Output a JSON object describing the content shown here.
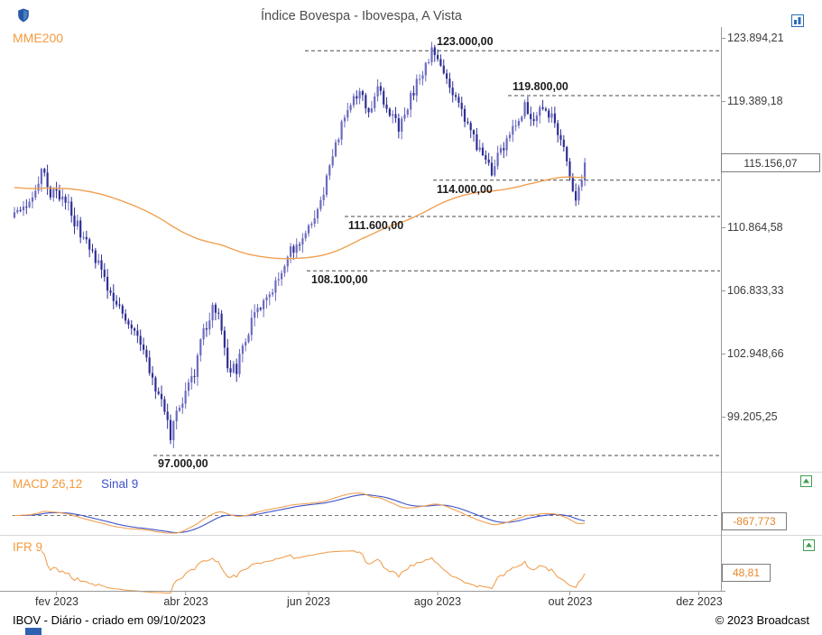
{
  "colors": {
    "candle_up": "#6B6BC0",
    "candle_down": "#2F2F95",
    "mme200": "#F0A052",
    "macd": "#F0A052",
    "sinal": "#3E53C9",
    "ifr": "#F0A052",
    "annotation_line": "#4A4A4A",
    "value_text": "#E7872B",
    "icon_blue": "#2B6CB8",
    "icon_green": "#3F9D4C"
  },
  "footer": {
    "left": "IBOV - Diário - criado em 09/10/2023",
    "right": "© 2023 Broadcast"
  },
  "chart_data": [
    {
      "name": "price",
      "type": "candlestick",
      "title": "Índice Bovespa - Ibovespa, A Vista",
      "symbol": "IBOV",
      "timeframe": "Diário",
      "y_scale": "log",
      "y_ticks": [
        123894.21,
        119389.18,
        110864.58,
        106833.33,
        102948.66,
        99205.25
      ],
      "y_tick_labels": [
        "123.894,21",
        "119.389,18",
        "110.864,58",
        "106.833,33",
        "102.948,66",
        "99.205,25"
      ],
      "last_price": 115156.07,
      "last_price_label": "115.156,07",
      "overlay": {
        "label": "MME200",
        "type": "ema",
        "period": 200,
        "seed": 113500
      },
      "x_ticks": [
        {
          "label": "fev 2023",
          "day": 14
        },
        {
          "label": "abr 2023",
          "day": 57
        },
        {
          "label": "jun 2023",
          "day": 98
        },
        {
          "label": "ago 2023",
          "day": 141
        },
        {
          "label": "out 2023",
          "day": 185
        },
        {
          "label": "dez 2023",
          "day": 228
        }
      ],
      "hlines": [
        {
          "label": "123.000,00",
          "value": 123000
        },
        {
          "label": "119.800,00",
          "value": 119800
        },
        {
          "label": "114.000,00",
          "value": 114000
        },
        {
          "label": "111.600,00",
          "value": 111600
        },
        {
          "label": "108.100,00",
          "value": 108100
        },
        {
          "label": "97.000,00",
          "value": 97000
        }
      ],
      "n_days": 191,
      "noise": 420,
      "wick": 480,
      "close_anchors": [
        [
          0,
          111500
        ],
        [
          4,
          112400
        ],
        [
          9,
          114500
        ],
        [
          12,
          113200
        ],
        [
          16,
          113000
        ],
        [
          21,
          110900
        ],
        [
          25,
          109600
        ],
        [
          31,
          107200
        ],
        [
          37,
          105100
        ],
        [
          43,
          103000
        ],
        [
          48,
          100600
        ],
        [
          51,
          98600
        ],
        [
          52,
          97800
        ],
        [
          54,
          99300
        ],
        [
          57,
          100500
        ],
        [
          60,
          101600
        ],
        [
          63,
          104300
        ],
        [
          66,
          105800
        ],
        [
          68,
          105000
        ],
        [
          71,
          102200
        ],
        [
          74,
          102000
        ],
        [
          79,
          105000
        ],
        [
          84,
          106500
        ],
        [
          88,
          107700
        ],
        [
          91,
          109200
        ],
        [
          96,
          110200
        ],
        [
          100,
          111400
        ],
        [
          103,
          113400
        ],
        [
          106,
          115800
        ],
        [
          109,
          117600
        ],
        [
          112,
          119200
        ],
        [
          115,
          119900
        ],
        [
          118,
          118800
        ],
        [
          121,
          120300
        ],
        [
          125,
          118400
        ],
        [
          128,
          117500
        ],
        [
          131,
          119000
        ],
        [
          135,
          121200
        ],
        [
          139,
          122800
        ],
        [
          141,
          122500
        ],
        [
          144,
          121000
        ],
        [
          148,
          119300
        ],
        [
          152,
          117200
        ],
        [
          156,
          115400
        ],
        [
          159,
          114600
        ],
        [
          163,
          116400
        ],
        [
          166,
          117600
        ],
        [
          170,
          118900
        ],
        [
          173,
          117900
        ],
        [
          176,
          118900
        ],
        [
          179,
          118100
        ],
        [
          182,
          116700
        ],
        [
          185,
          114200
        ],
        [
          187,
          112600
        ],
        [
          189,
          113900
        ],
        [
          190,
          115156.07
        ]
      ]
    },
    {
      "name": "macd",
      "type": "line",
      "series": [
        {
          "label": "MACD 26,12",
          "color_role": "macd"
        },
        {
          "label": "Sinal 9",
          "color_role": "sinal"
        }
      ],
      "params": {
        "fast": 12,
        "slow": 26,
        "signal": 9
      },
      "zero_line": true,
      "last_value_label": "-867,773"
    },
    {
      "name": "ifr",
      "type": "line",
      "series": [
        {
          "label": "IFR 9",
          "color_role": "ifr"
        }
      ],
      "params": {
        "period": 9
      },
      "last_value_label": "48,81"
    }
  ]
}
